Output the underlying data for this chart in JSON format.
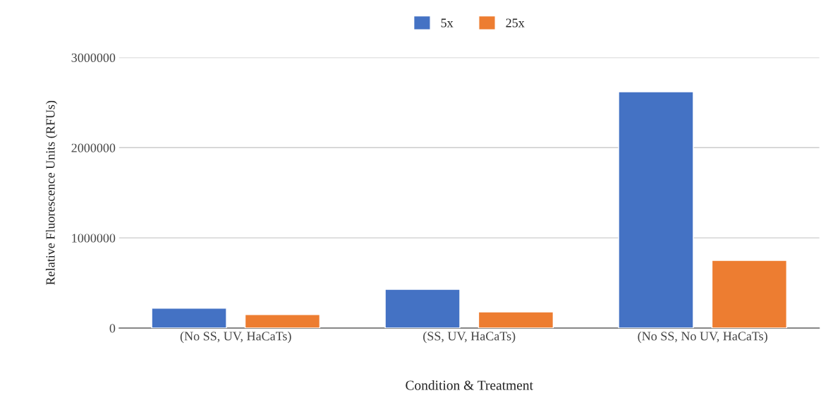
{
  "chart_data": {
    "type": "bar",
    "xlabel": "Condition & Treatment",
    "ylabel": "Relative Fluorescence Units (RFUs)",
    "categories": [
      "(No SS, UV, HaCaTs)",
      "(SS, UV, HaCaTs)",
      "(No SS, No UV, HaCaTs)"
    ],
    "series": [
      {
        "name": "5x",
        "color": "#4472c4",
        "values": [
          220000,
          430000,
          2620000
        ]
      },
      {
        "name": "25x",
        "color": "#ed7d31",
        "values": [
          150000,
          180000,
          750000
        ]
      }
    ],
    "ylim": [
      0,
      3000000
    ],
    "yticks": [
      0,
      1000000,
      2000000,
      3000000
    ],
    "grid": "y",
    "legend": "top"
  }
}
